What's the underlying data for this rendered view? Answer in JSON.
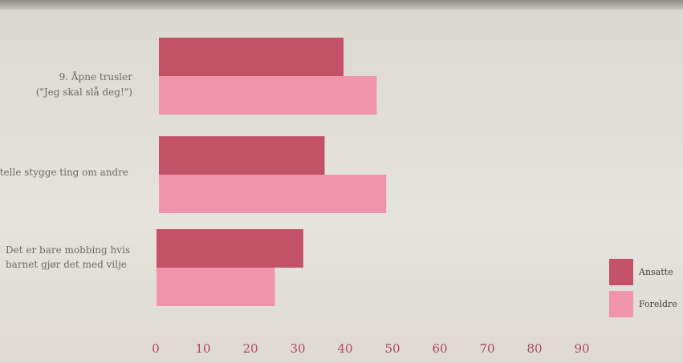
{
  "chart_data": {
    "type": "bar",
    "orientation": "horizontal",
    "categories": [
      [
        "9. Åpne trusler",
        "(\"Jeg skal slå deg!\")"
      ],
      [
        "telle stygge ting om andre"
      ],
      [
        "Det er bare mobbing hvis",
        "barnet gjør det med vilje"
      ]
    ],
    "series": [
      {
        "name": "Ansatte",
        "color": "#c35168",
        "values": [
          39,
          35,
          31
        ]
      },
      {
        "name": "Foreldre",
        "color": "#ef94aa",
        "values": [
          46,
          48,
          25
        ]
      }
    ],
    "xticks": [
      "0",
      "10",
      "20",
      "30",
      "40",
      "50",
      "60",
      "70",
      "80",
      "90"
    ],
    "xlim": [
      0,
      90
    ],
    "grid": false,
    "legend_position": "bottom-right"
  },
  "colors": {
    "ansatte": "#c35168",
    "foreldre": "#ef94aa",
    "tick_text": "#b0475b"
  }
}
